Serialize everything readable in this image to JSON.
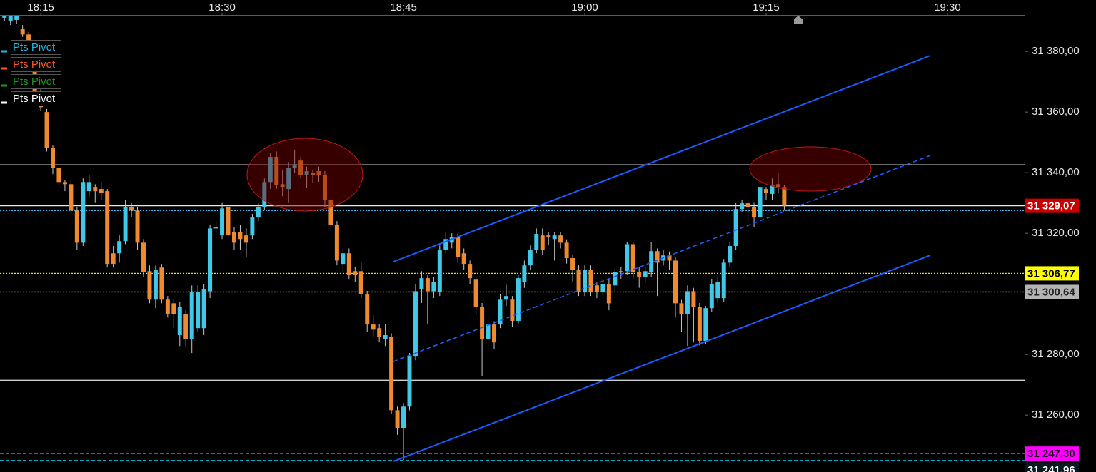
{
  "chart_data": {
    "type": "candlestick",
    "xlim": [
      1091.63,
      1176.38
    ],
    "ylim": [
      31242.4,
      31391.8
    ],
    "xticks": [
      {
        "value": 1095,
        "label": "18:15"
      },
      {
        "value": 1110,
        "label": "18:30"
      },
      {
        "value": 1125,
        "label": "18:45"
      },
      {
        "value": 1140,
        "label": "19:00"
      },
      {
        "value": 1155,
        "label": "19:15"
      },
      {
        "value": 1170,
        "label": "19:30"
      }
    ],
    "yticks": [
      {
        "value": 31380,
        "label": "31 380,00"
      },
      {
        "value": 31360,
        "label": "31 360,00"
      },
      {
        "value": 31340,
        "label": "31 340,00"
      },
      {
        "value": 31320,
        "label": "31 320,00"
      },
      {
        "value": 31280,
        "label": "31 280,00"
      },
      {
        "value": 31260,
        "label": "31 260,00"
      }
    ],
    "grid": false,
    "up_color": "#3fc8e8",
    "down_color": "#f08a2e",
    "wick_color": "#c8c8c8",
    "x": [
      1092,
      1092.5,
      1093,
      1093.5,
      1094,
      1094.5,
      1095,
      1095.5,
      1096,
      1096.5,
      1097,
      1097.5,
      1098,
      1098.5,
      1099,
      1099.5,
      1100,
      1100.5,
      1101,
      1101.5,
      1102,
      1102.5,
      1103,
      1103.5,
      1104,
      1104.5,
      1105,
      1105.5,
      1106,
      1106.5,
      1107,
      1107.5,
      1108,
      1108.5,
      1109,
      1109.5,
      1110,
      1110.5,
      1111,
      1111.5,
      1112,
      1112.5,
      1113,
      1113.5,
      1114,
      1114.5,
      1115,
      1115.5,
      1116,
      1116.5,
      1117,
      1117.5,
      1118,
      1118.5,
      1119,
      1119.5,
      1120,
      1120.5,
      1121,
      1121.5,
      1122,
      1122.5,
      1123,
      1123.5,
      1124,
      1124.5,
      1125,
      1125.5,
      1126,
      1126.5,
      1127,
      1127.5,
      1128,
      1128.5,
      1129,
      1129.5,
      1130,
      1130.5,
      1131,
      1131.5,
      1132,
      1132.5,
      1133,
      1133.5,
      1134,
      1134.5,
      1135,
      1135.5,
      1136,
      1136.5,
      1137,
      1137.5,
      1138,
      1138.5,
      1139,
      1139.5,
      1140,
      1140.5,
      1141,
      1141.5,
      1142,
      1142.5,
      1143,
      1143.5,
      1144,
      1144.5,
      1145,
      1145.5,
      1146,
      1146.5,
      1147,
      1147.5,
      1148,
      1148.5,
      1149,
      1149.5,
      1150,
      1150.5,
      1151,
      1151.5,
      1152,
      1152.5,
      1153,
      1153.5,
      1154,
      1154.5,
      1155,
      1155.5,
      1156,
      1156.5
    ],
    "open": [
      31391.1,
      31389.9,
      31390.4,
      31387.5,
      31385.6,
      31375.8,
      31366.4,
      31360.0,
      31348.2,
      31341.6,
      31336.9,
      31336.2,
      31327.5,
      31316.9,
      31333.9,
      31335.3,
      31334.6,
      31333.9,
      31313.4,
      31313.4,
      31317.4,
      31328.7,
      31327.5,
      31316.9,
      31307.5,
      31298.1,
      31308.7,
      31298.1,
      31296.9,
      31286.4,
      31293.4,
      31285.2,
      31288.7,
      31288.7,
      31300.9,
      31321.6,
      31319.3,
      31328.7,
      31320.5,
      31320.5,
      31319.3,
      31319.3,
      31325.2,
      31328.7,
      31336.9,
      31345.2,
      31336.2,
      31334.6,
      31341.6,
      31344.0,
      31339.3,
      31340.0,
      31340.5,
      31339.3,
      31331.1,
      31322.8,
      31309.9,
      31313.4,
      31307.5,
      31307.5,
      31300.0,
      31289.9,
      31288.7,
      31285.2,
      31285.9,
      31261.6,
      31255.8,
      31262.8,
      31279.3,
      31301.6,
      31305.2,
      31300.9,
      31300.5,
      31314.6,
      31316.9,
      31318.8,
      31313.4,
      31309.9,
      31304.7,
      31295.8,
      31285.2,
      31289.9,
      31289.9,
      31298.1,
      31298.1,
      31291.1,
      31304.0,
      31309.4,
      31314.6,
      31319.3,
      31319.3,
      31318.1,
      31319.3,
      31316.9,
      31311.8,
      31308.0,
      31300.5,
      31308.0,
      31302.8,
      31300.5,
      31303.3,
      31302.8,
      31307.1,
      31307.5,
      31316.4,
      31307.1,
      31305.6,
      31307.1,
      31314.1,
      31311.0,
      31312.7,
      31311.0,
      31296.9,
      31293.4,
      31300.9,
      31295.8,
      31284.5,
      31295.3,
      31298.6,
      31298.6,
      31310.3,
      31315.8,
      31328.0,
      31329.9,
      31328.7,
      31325.2,
      31334.6,
      31333.0,
      31336.2,
      31335.3
    ],
    "high": [
      31392.5,
      31392.5,
      31392.5,
      31388.7,
      31386.4,
      31377.0,
      31367.5,
      31361.0,
      31349.0,
      31342.8,
      31337.5,
      31337.4,
      31328.7,
      31338.1,
      31339.3,
      31336.2,
      31336.9,
      31334.6,
      31315.8,
      31319.3,
      31331.1,
      31330.0,
      31328.7,
      31318.1,
      31309.4,
      31309.4,
      31309.9,
      31299.3,
      31298.1,
      31297.4,
      31294.6,
      31302.8,
      31302.8,
      31303.3,
      31322.8,
      31324.0,
      31330.0,
      31334.6,
      31322.1,
      31322.8,
      31321.6,
      31326.4,
      31329.9,
      31338.1,
      31346.4,
      31347.0,
      31341.0,
      31343.5,
      31347.5,
      31345.2,
      31342.0,
      31341.0,
      31342.0,
      31340.5,
      31332.2,
      31324.0,
      31315.0,
      31315.0,
      31309.0,
      31310.3,
      31301.0,
      31293.0,
      31290.0,
      31290.0,
      31287.0,
      31262.8,
      31264.0,
      31280.5,
      31303.3,
      31307.5,
      31306.4,
      31305.6,
      31316.0,
      31320.5,
      31320.0,
      31320.0,
      31315.0,
      31311.0,
      31305.6,
      31297.0,
      31292.0,
      31291.0,
      31300.0,
      31303.0,
      31299.3,
      31306.4,
      31311.0,
      31316.0,
      31321.6,
      31321.6,
      31320.5,
      31320.5,
      31320.5,
      31318.0,
      31313.0,
      31309.4,
      31309.4,
      31309.4,
      31304.0,
      31305.0,
      31305.0,
      31308.5,
      31309.0,
      31317.0,
      31317.0,
      31309.0,
      31309.0,
      31317.0,
      31315.0,
      31314.6,
      31314.0,
      31312.2,
      31298.0,
      31302.8,
      31302.0,
      31297.0,
      31296.0,
      31305.0,
      31305.6,
      31311.5,
      31317.0,
      31329.9,
      31331.1,
      31331.1,
      31330.0,
      31336.9,
      31335.3,
      31338.1,
      31340.0,
      31336.0
    ],
    "low": [
      31390.0,
      31388.7,
      31389.0,
      31384.8,
      31381.8,
      31365.2,
      31360.4,
      31347.0,
      31339.5,
      31333.4,
      31333.9,
      31326.4,
      31314.6,
      31315.8,
      31332.2,
      31330.0,
      31331.1,
      31308.7,
      31308.7,
      31310.3,
      31316.4,
      31325.2,
      31314.6,
      31305.6,
      31296.9,
      31295.3,
      31296.9,
      31292.2,
      31288.7,
      31282.8,
      31282.8,
      31280.5,
      31287.5,
      31286.4,
      31298.6,
      31320.0,
      31318.1,
      31317.4,
      31314.6,
      31314.6,
      31312.2,
      31318.1,
      31324.0,
      31327.5,
      31334.6,
      31334.6,
      31332.2,
      31330.0,
      31340.0,
      31338.1,
      31335.0,
      31336.5,
      31337.0,
      31328.7,
      31321.0,
      31309.4,
      31307.5,
      31304.7,
      31304.0,
      31298.6,
      31287.5,
      31285.9,
      31284.0,
      31282.8,
      31260.5,
      31253.5,
      31245.2,
      31261.6,
      31278.1,
      31297.0,
      31290.0,
      31298.6,
      31299.3,
      31313.4,
      31315.0,
      31310.3,
      31308.0,
      31303.3,
      31293.0,
      31272.9,
      31282.0,
      31281.7,
      31288.7,
      31296.0,
      31289.0,
      31289.9,
      31302.0,
      31308.0,
      31313.4,
      31313.0,
      31316.0,
      31311.0,
      31315.0,
      31310.0,
      31304.0,
      31299.3,
      31299.3,
      31299.3,
      31298.6,
      31299.3,
      31294.6,
      31301.0,
      31305.0,
      31306.4,
      31305.0,
      31302.0,
      31304.0,
      31305.6,
      31299.3,
      31309.4,
      31308.0,
      31292.2,
      31287.5,
      31282.8,
      31284.0,
      31283.0,
      31283.5,
      31294.0,
      31297.0,
      31297.5,
      31309.0,
      31314.6,
      31327.0,
      31324.0,
      31322.1,
      31324.0,
      31331.1,
      31331.1,
      31333.4,
      31327.5
    ],
    "close": [
      31392.2,
      31391.8,
      31391.8,
      31385.6,
      31382.8,
      31366.4,
      31361.6,
      31348.2,
      31341.6,
      31336.9,
      31336.2,
      31327.5,
      31316.9,
      31336.9,
      31336.9,
      31333.9,
      31333.4,
      31309.9,
      31309.9,
      31317.4,
      31328.7,
      31327.5,
      31316.9,
      31307.1,
      31298.1,
      31308.0,
      31298.1,
      31293.4,
      31293.4,
      31295.8,
      31285.2,
      31300.5,
      31300.5,
      31301.6,
      31321.6,
      31322.1,
      31328.2,
      31319.3,
      31316.9,
      31318.1,
      31316.9,
      31325.2,
      31328.7,
      31336.9,
      31345.2,
      31335.8,
      31335.3,
      31341.6,
      31342.8,
      31339.3,
      31340.5,
      31339.3,
      31339.3,
      31331.1,
      31322.8,
      31311.0,
      31313.4,
      31306.4,
      31306.4,
      31300.0,
      31289.9,
      31288.2,
      31285.9,
      31286.4,
      31261.6,
      31255.8,
      31262.8,
      31279.3,
      31300.9,
      31305.2,
      31300.9,
      31304.0,
      31314.6,
      31318.1,
      31318.8,
      31312.2,
      31309.9,
      31305.2,
      31295.8,
      31285.2,
      31289.9,
      31284.0,
      31298.1,
      31299.3,
      31291.1,
      31305.2,
      31309.4,
      31314.6,
      31319.8,
      31314.6,
      31318.8,
      31319.3,
      31316.9,
      31311.8,
      31308.0,
      31300.5,
      31308.0,
      31300.5,
      31300.5,
      31303.3,
      31296.9,
      31307.1,
      31307.5,
      31316.4,
      31307.1,
      31305.6,
      31307.5,
      31314.1,
      31310.3,
      31312.7,
      31311.0,
      31296.9,
      31293.4,
      31300.9,
      31295.8,
      31284.5,
      31295.3,
      31303.3,
      31304.0,
      31310.3,
      31315.8,
      31328.0,
      31329.9,
      31328.7,
      31325.2,
      31335.3,
      31333.4,
      31335.8,
      31335.3,
      31329.07
    ],
    "levels": [
      {
        "value": 31342.6,
        "color": "#cfcfcf",
        "style": "solid"
      },
      {
        "value": 31329.07,
        "color": "#e8e8e8",
        "style": "solid",
        "label": "31 329,07",
        "label_color": "#c80000",
        "text_color": "#ffffff"
      },
      {
        "value": 31327.5,
        "color": "#3cb4f0",
        "style": "dotted"
      },
      {
        "value": 31306.77,
        "color": "#e8d24a",
        "style": "dotted",
        "label": "31 306,77",
        "label_color": "#ffff00",
        "text_color": "#000000"
      },
      {
        "value": 31300.64,
        "color": "#a8a8a8",
        "style": "dotted",
        "label": "31 300,64",
        "label_color": "#b4b4b4",
        "text_color": "#222222"
      },
      {
        "value": 31271.5,
        "color": "#cfcfcf",
        "style": "solid"
      },
      {
        "value": 31247.3,
        "color": "#ff00ff",
        "style": "dashed",
        "label": "31 247,30",
        "label_color": "#ff00ff",
        "text_color": "#220022"
      },
      {
        "value": 31245.0,
        "color": "#00e0ff",
        "style": "dashed"
      },
      {
        "value": 31241.96,
        "color": "#00e0ff",
        "style": "none",
        "label": "31 241,96",
        "label_color": "#0a1a22",
        "text_color": "#ffffff"
      }
    ],
    "legend": [
      {
        "name": "Pts Pivot",
        "color": "#22b5e6"
      },
      {
        "name": "Pts Pivot",
        "color": "#ff5a1e"
      },
      {
        "name": "Pts Pivot",
        "color": "#1e9a1e"
      },
      {
        "name": "Pts Pivot",
        "color": "#ffffff"
      }
    ]
  }
}
